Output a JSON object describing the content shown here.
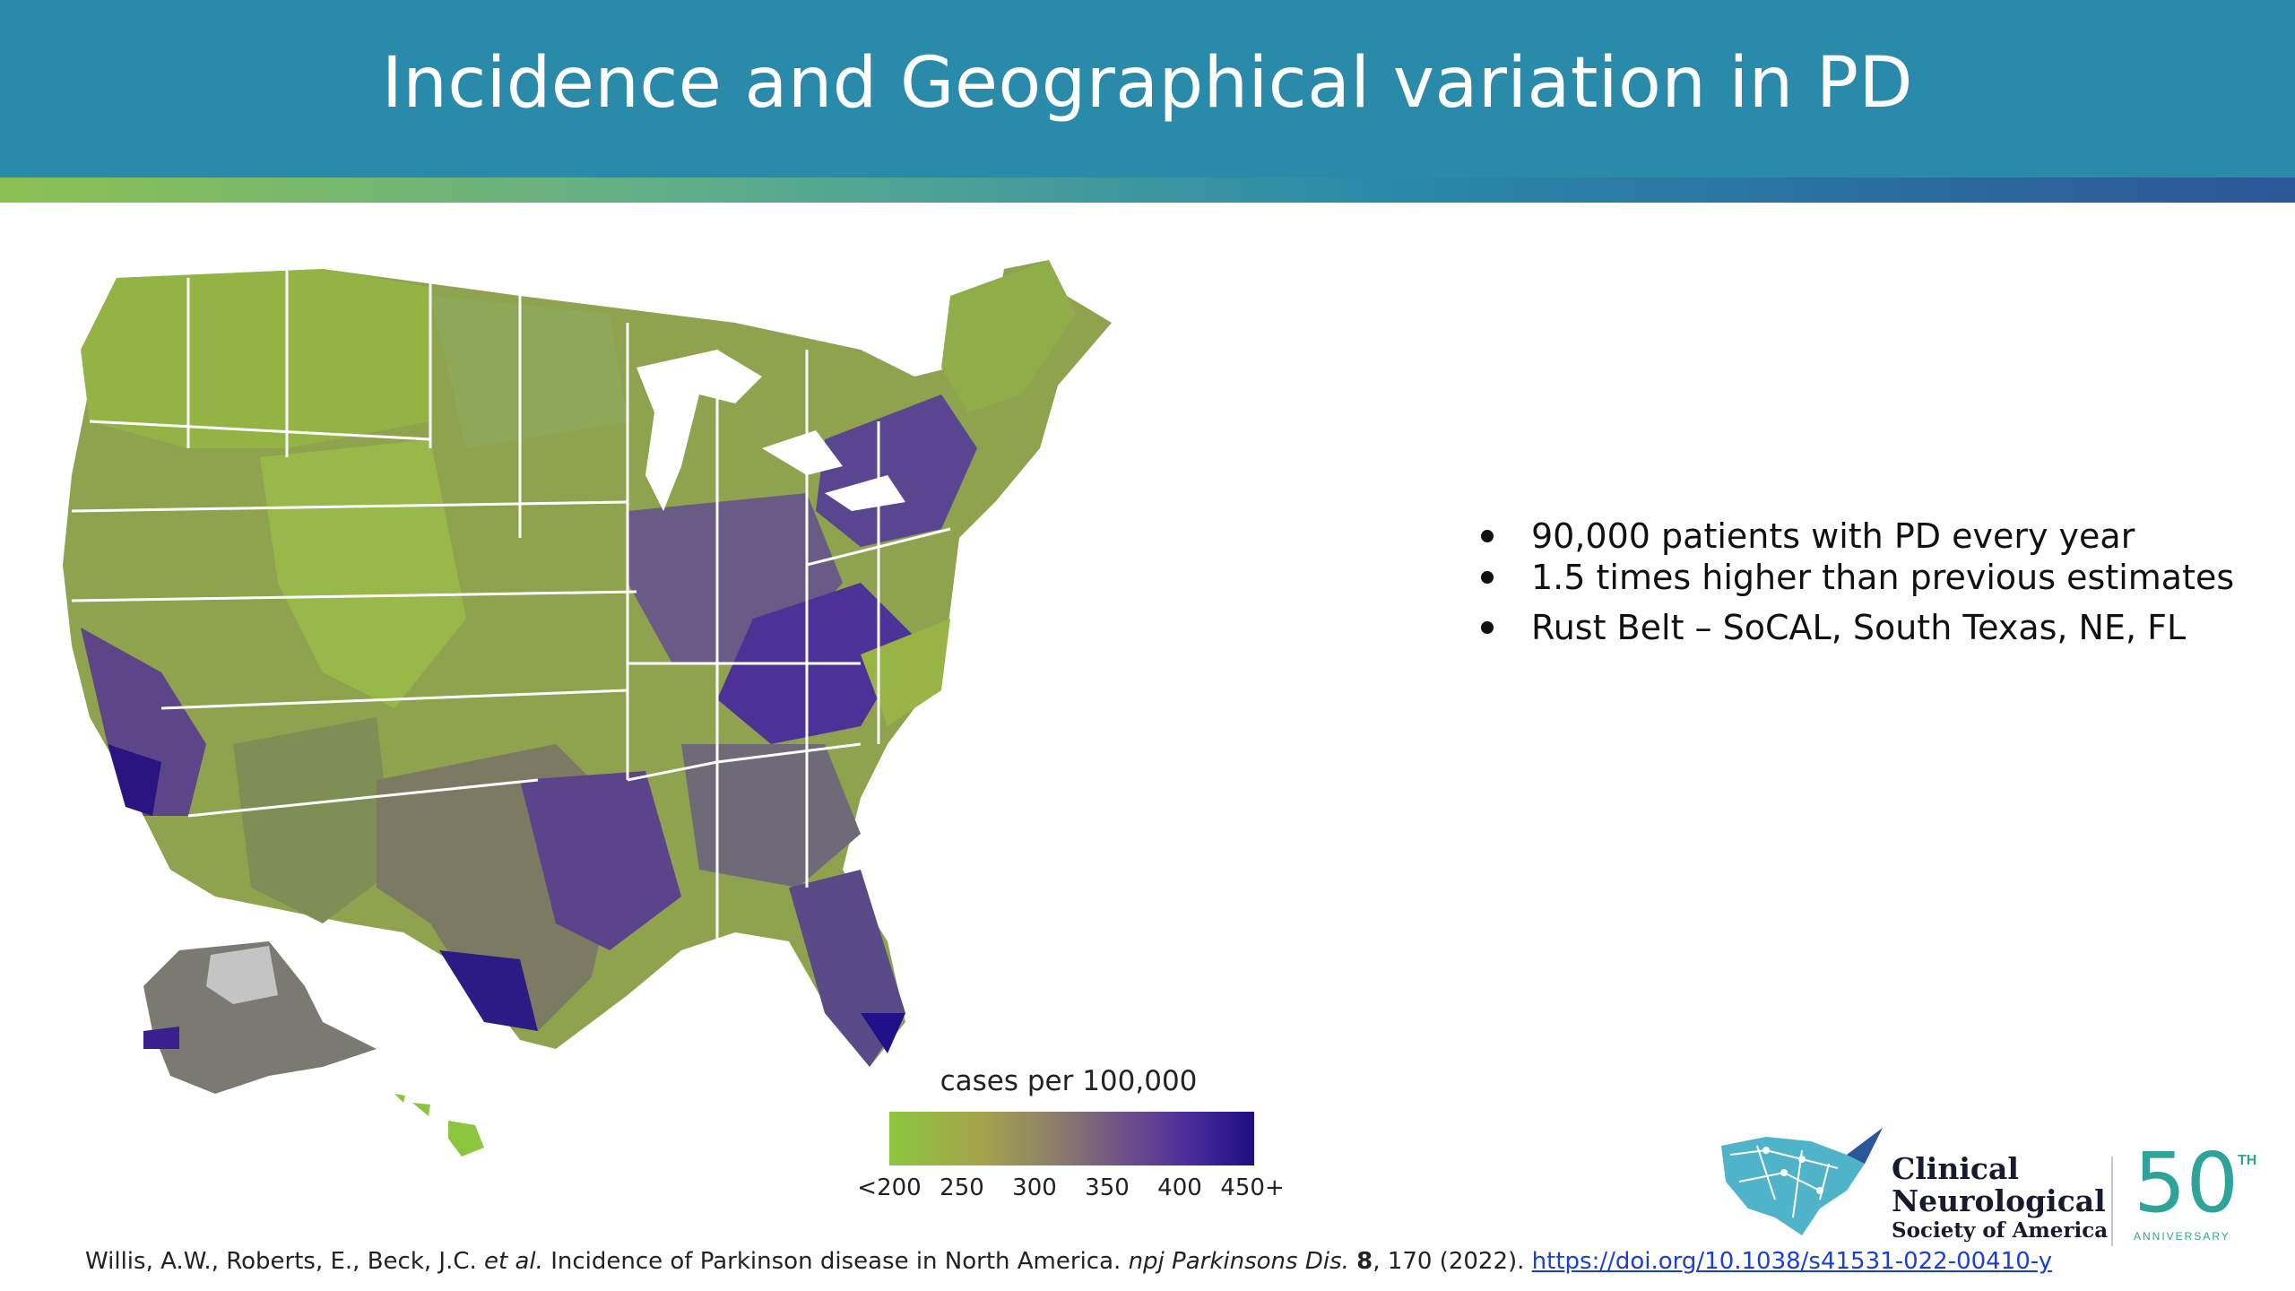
{
  "slide": {
    "title": "Incidence and Geographical variation in PD"
  },
  "bullets": [
    "90,000 patients with PD every year",
    "1.5 times higher than previous estimates",
    "Rust Belt – SoCAL, South Texas, NE, FL"
  ],
  "legend": {
    "title": "cases per 100,000",
    "ticks": [
      "<200",
      "250",
      "300",
      "350",
      "400",
      "450+"
    ],
    "colors": [
      "#8cc63f",
      "#a5a34b",
      "#8c7f6a",
      "#6e4f8a",
      "#4a2d9d",
      "#1f0f7f"
    ]
  },
  "citation": {
    "authors": "Willis, A.W., Roberts, E., Beck, J.C. ",
    "etal": "et al.",
    "title": " Incidence of Parkinson disease in North America. ",
    "journal": "npj Parkinsons Dis.",
    "volume": "8",
    "rest": ", 170 (2022). ",
    "doi": "https://doi.org/10.1038/s41531-022-00410-y"
  },
  "logo": {
    "line1": "Clinical",
    "line2": "Neurological",
    "line3": "Society of America",
    "number": "50",
    "suffix": "TH",
    "anniversary": "ANNIVERSARY"
  },
  "colors": {
    "title_bar": "#2a8aaa",
    "green": "#8cc63f",
    "teal": "#2da39a",
    "purple": "#3a1f8f"
  }
}
